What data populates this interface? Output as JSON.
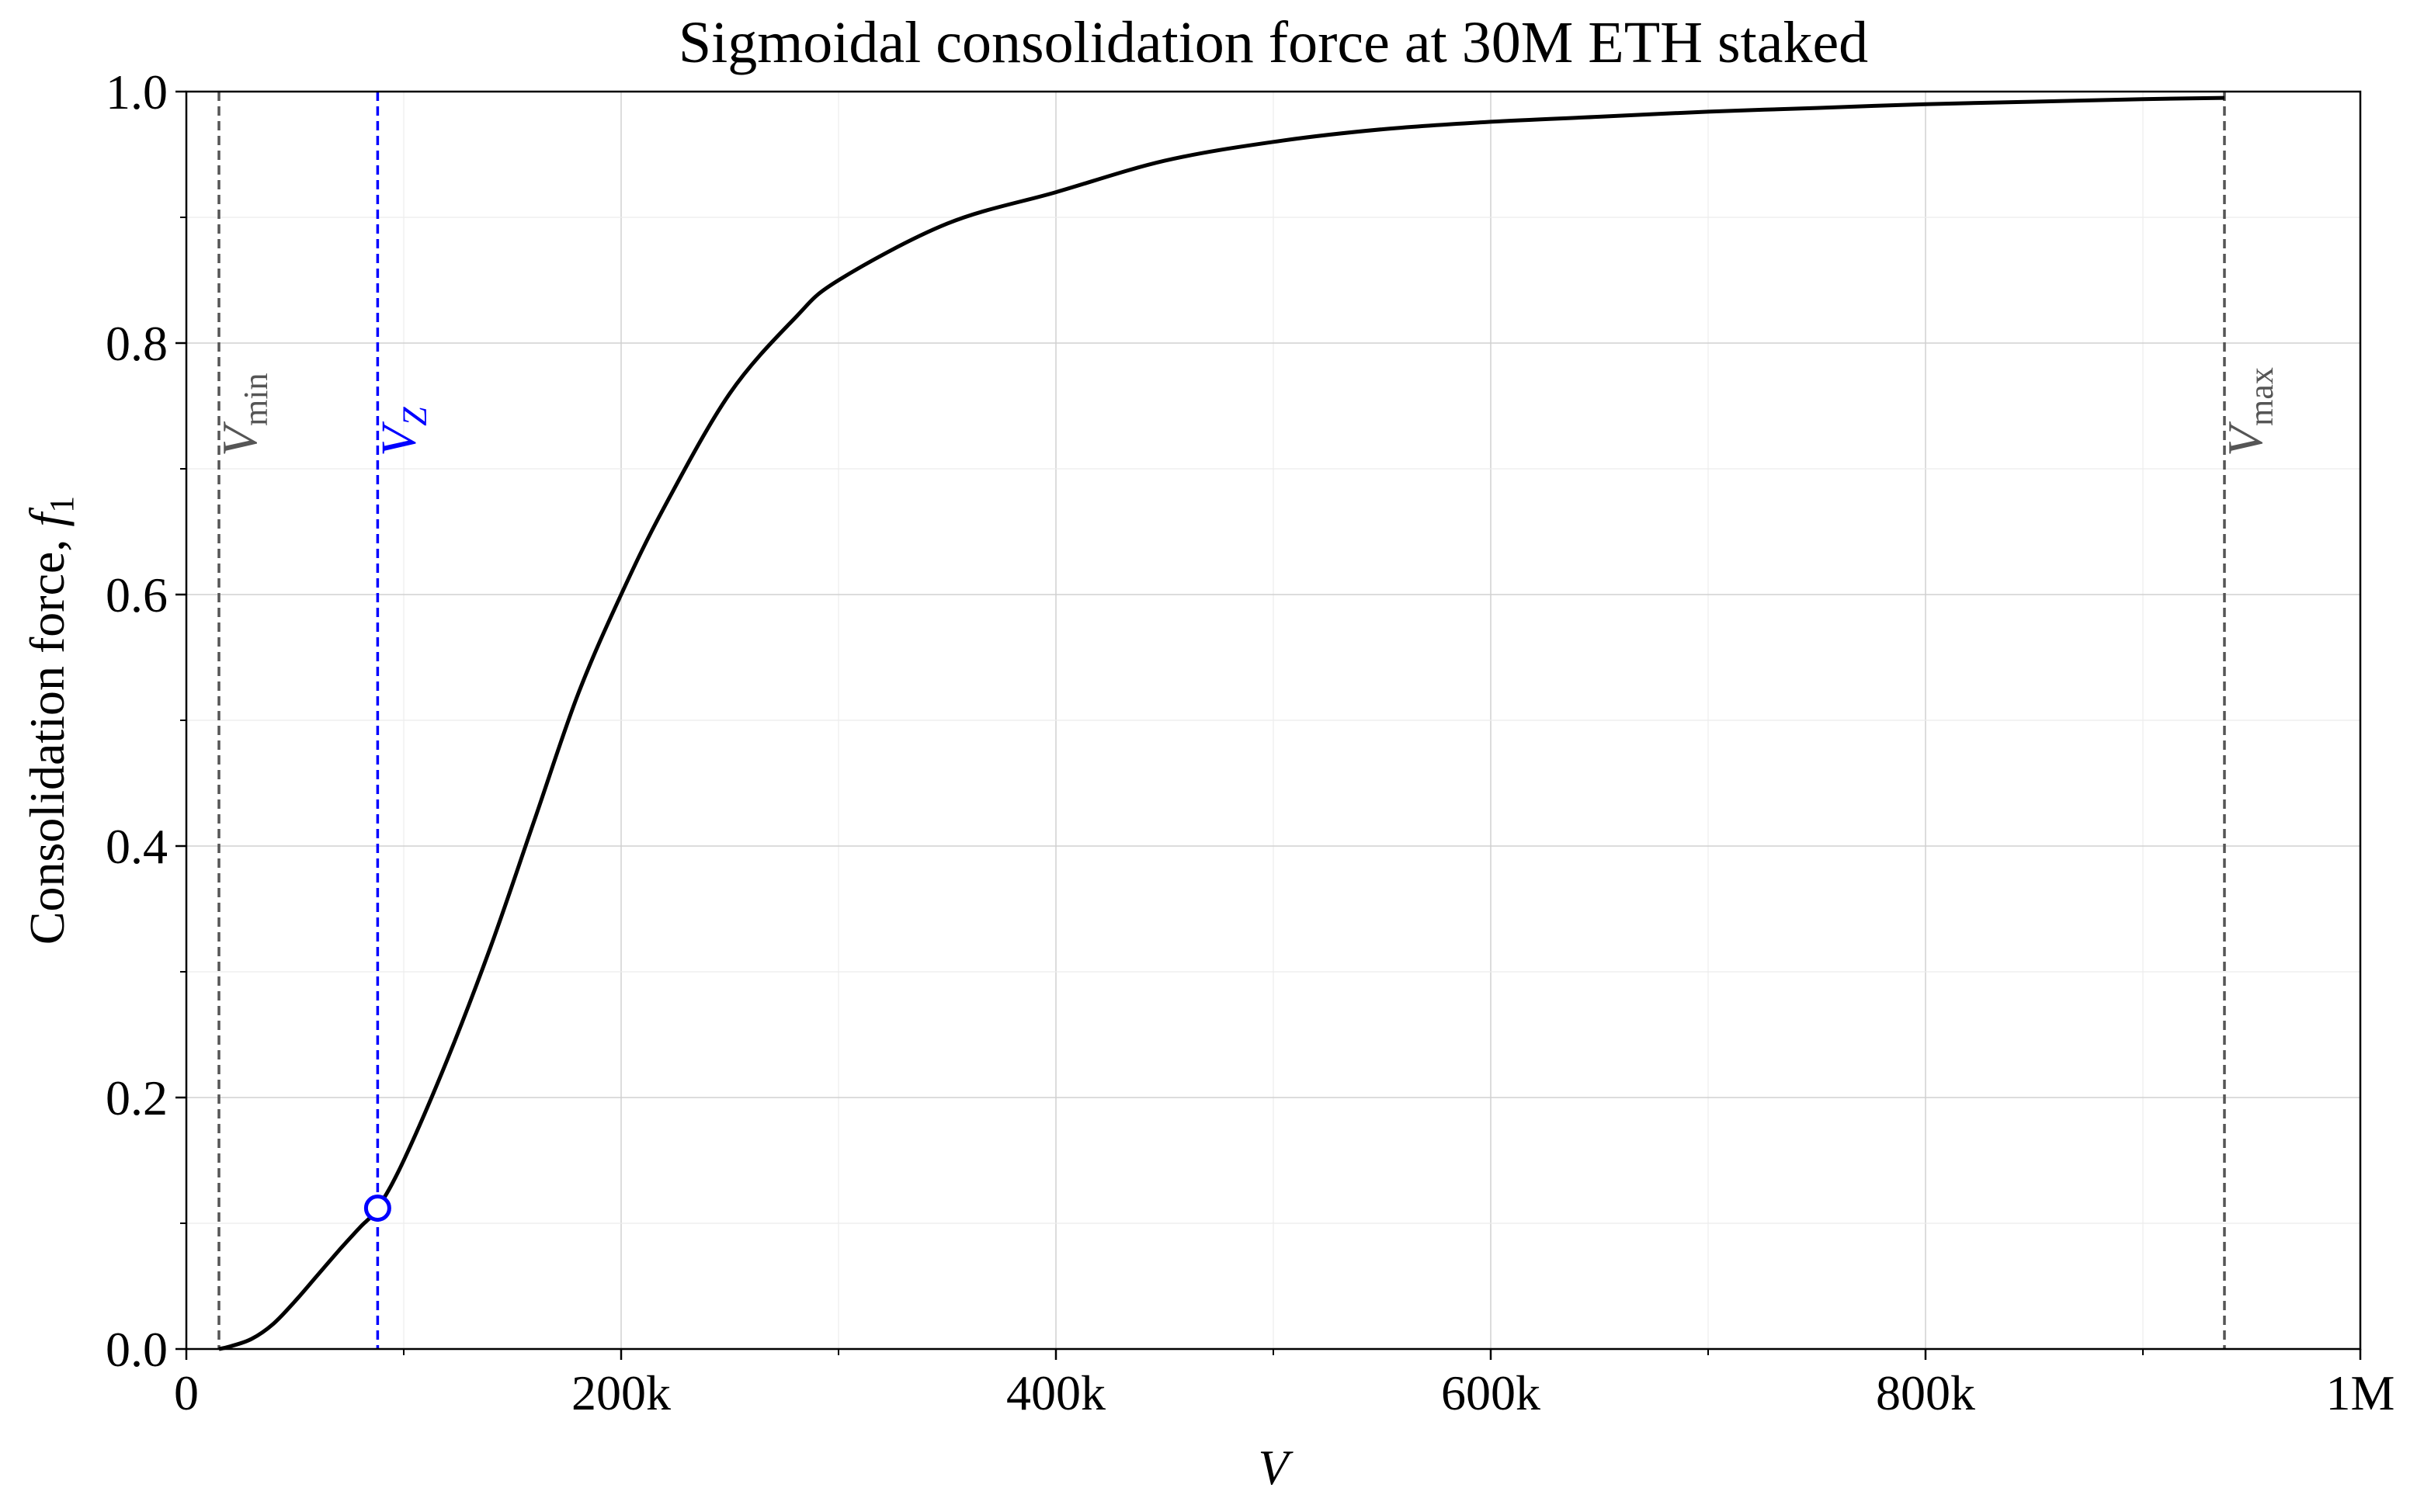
{
  "chart_data": {
    "type": "line",
    "title": "Sigmoidal consolidation force at 30M ETH staked",
    "xlabel": "V",
    "ylabel_text": "Consolidation force, ",
    "ylabel_symbol": "f",
    "ylabel_subscript": "1",
    "xlim": [
      0,
      1000000
    ],
    "ylim": [
      0,
      1
    ],
    "grid": true,
    "x_ticks": [
      {
        "value": 0,
        "label": "0"
      },
      {
        "value": 200000,
        "label": "200k"
      },
      {
        "value": 400000,
        "label": "400k"
      },
      {
        "value": 600000,
        "label": "600k"
      },
      {
        "value": 800000,
        "label": "800k"
      },
      {
        "value": 1000000,
        "label": "1M"
      }
    ],
    "x_minor_ticks": [
      100000,
      300000,
      500000,
      700000,
      900000
    ],
    "y_ticks": [
      {
        "value": 0,
        "label": "0.0"
      },
      {
        "value": 0.2,
        "label": "0.2"
      },
      {
        "value": 0.4,
        "label": "0.4"
      },
      {
        "value": 0.6,
        "label": "0.6"
      },
      {
        "value": 0.8,
        "label": "0.8"
      },
      {
        "value": 1.0,
        "label": "1.0"
      }
    ],
    "y_minor_ticks": [
      0.1,
      0.3,
      0.5,
      0.7,
      0.9
    ],
    "series": [
      {
        "color": "#000000",
        "x": [
          15000,
          20000,
          30000,
          40000,
          50000,
          60000,
          70000,
          80000,
          88000,
          100000,
          120000,
          140000,
          160000,
          180000,
          200000,
          220000,
          250000,
          280000,
          300000,
          350000,
          400000,
          450000,
          500000,
          550000,
          600000,
          650000,
          700000,
          750000,
          800000,
          850000,
          900000,
          937500
        ],
        "y": [
          0.0,
          0.002,
          0.008,
          0.02,
          0.038,
          0.058,
          0.078,
          0.097,
          0.112,
          0.15,
          0.23,
          0.32,
          0.42,
          0.52,
          0.6,
          0.67,
          0.76,
          0.82,
          0.85,
          0.895,
          0.92,
          0.945,
          0.96,
          0.97,
          0.976,
          0.98,
          0.984,
          0.987,
          0.99,
          0.992,
          0.994,
          0.995
        ]
      }
    ],
    "markers": [
      {
        "x": 88000,
        "y": 0.112,
        "color": "#0000ff"
      }
    ],
    "vlines": [
      {
        "x": 15000,
        "color": "#555555",
        "label_main": "V",
        "label_sub": "min"
      },
      {
        "x": 88000,
        "color": "#0000ff",
        "label_main": "V",
        "label_sub": "Z"
      },
      {
        "x": 937500,
        "color": "#555555",
        "label_main": "V",
        "label_sub": "max"
      }
    ]
  }
}
